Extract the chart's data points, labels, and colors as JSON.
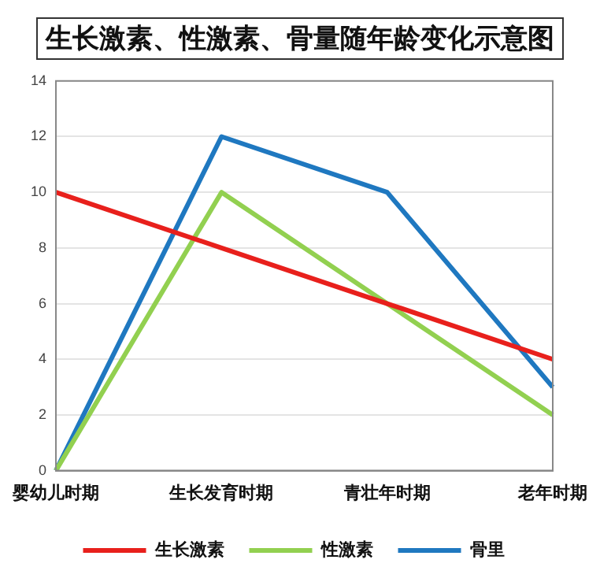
{
  "chart_data": {
    "type": "line",
    "title": "生长激素、性激素、骨量随年龄变化示意图",
    "categories": [
      "婴幼儿时期",
      "生长发育时期",
      "青壮年时期",
      "老年时期"
    ],
    "series": [
      {
        "name": "生长激素",
        "color": "#e8201c",
        "values": [
          10,
          8,
          6,
          4
        ]
      },
      {
        "name": "性激素",
        "color": "#92d050",
        "values": [
          0,
          10,
          6,
          2
        ]
      },
      {
        "name": "骨里",
        "color": "#1f78c0",
        "values": [
          0,
          12,
          10,
          3
        ]
      }
    ],
    "ylim": [
      0,
      14
    ],
    "yticks": [
      0,
      2,
      4,
      6,
      8,
      10,
      12,
      14
    ],
    "grid": "y",
    "legend": "bottom",
    "marker": "none",
    "line_style": "solid"
  }
}
